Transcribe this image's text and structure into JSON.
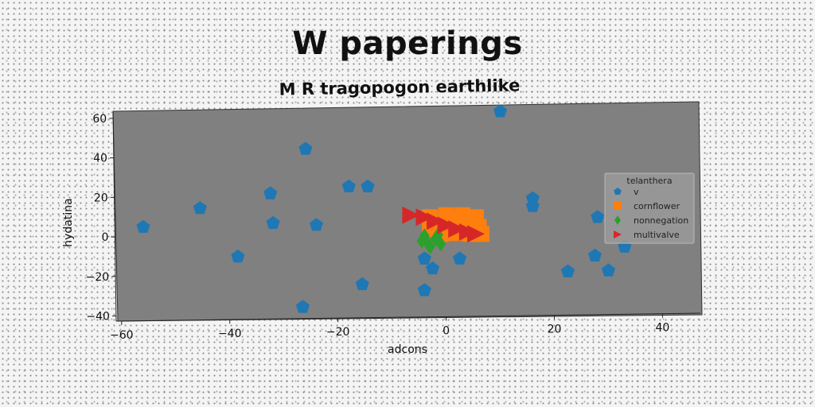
{
  "chart_data": {
    "type": "scatter",
    "title": "W paperings",
    "subtitle": "M R tragopogon earthlike",
    "xlabel": "adcons",
    "ylabel": "hydatina",
    "xlim": [
      -61,
      47
    ],
    "ylim": [
      -41,
      66
    ],
    "xticks": [
      -60,
      -40,
      -20,
      0,
      20,
      40
    ],
    "yticks": [
      -40,
      -20,
      0,
      20,
      40,
      60
    ],
    "xtick_labels": [
      "−60",
      "−40",
      "−20",
      "0",
      "20",
      "40"
    ],
    "ytick_labels": [
      "−40",
      "−20",
      "0",
      "20",
      "40",
      "60"
    ],
    "plot_background": "#808080",
    "grid": false,
    "legend": {
      "title": "telanthera",
      "placement": "right"
    },
    "series": [
      {
        "name": "v",
        "marker": "pentagon",
        "color": "#1f77b4",
        "points": [
          [
            -56,
            5
          ],
          [
            -45.5,
            14.5
          ],
          [
            -38.5,
            -10
          ],
          [
            -32.5,
            22
          ],
          [
            -32,
            7
          ],
          [
            -26,
            44.5
          ],
          [
            -26.5,
            -35.5
          ],
          [
            -24,
            6
          ],
          [
            -18,
            25.5
          ],
          [
            -14.5,
            25.5
          ],
          [
            -15.5,
            -24
          ],
          [
            -4,
            -11
          ],
          [
            -2.5,
            -16
          ],
          [
            -4,
            -27
          ],
          [
            2.5,
            -11
          ],
          [
            10,
            63.5
          ],
          [
            16,
            19.5
          ],
          [
            16,
            15.5
          ],
          [
            22.5,
            -17.5
          ],
          [
            27.5,
            -9.5
          ],
          [
            28,
            10
          ],
          [
            30,
            -17
          ],
          [
            33,
            -5
          ]
        ]
      },
      {
        "name": "cornflower",
        "marker": "square",
        "color": "#ff7f0e",
        "points": [
          [
            -3,
            10
          ],
          [
            -3,
            4
          ],
          [
            -1.5,
            7
          ],
          [
            0,
            11
          ],
          [
            0.5,
            5
          ],
          [
            1.5,
            2
          ],
          [
            3,
            11
          ],
          [
            3.5,
            6.5
          ],
          [
            4.5,
            1.5
          ],
          [
            5.5,
            10
          ],
          [
            6,
            5
          ],
          [
            6.5,
            1.5
          ],
          [
            -1,
            1.5
          ],
          [
            2,
            8.5
          ],
          [
            4.5,
            8.5
          ]
        ]
      },
      {
        "name": "nonnegation",
        "marker": "diamond",
        "color": "#2ca02c",
        "points": [
          [
            -4,
            0.5
          ],
          [
            -3.5,
            -3
          ],
          [
            -2,
            -1
          ],
          [
            -1,
            -3.5
          ],
          [
            -3,
            -5
          ],
          [
            -1.5,
            1
          ],
          [
            -4.5,
            -2
          ]
        ]
      },
      {
        "name": "multivalve",
        "marker": "triangle-right",
        "color": "#d62728",
        "points": [
          [
            -6.5,
            11
          ],
          [
            -4,
            10
          ],
          [
            -2,
            8
          ],
          [
            0,
            6
          ],
          [
            2,
            4
          ],
          [
            4,
            2.5
          ],
          [
            5.5,
            1.5
          ]
        ]
      }
    ]
  }
}
